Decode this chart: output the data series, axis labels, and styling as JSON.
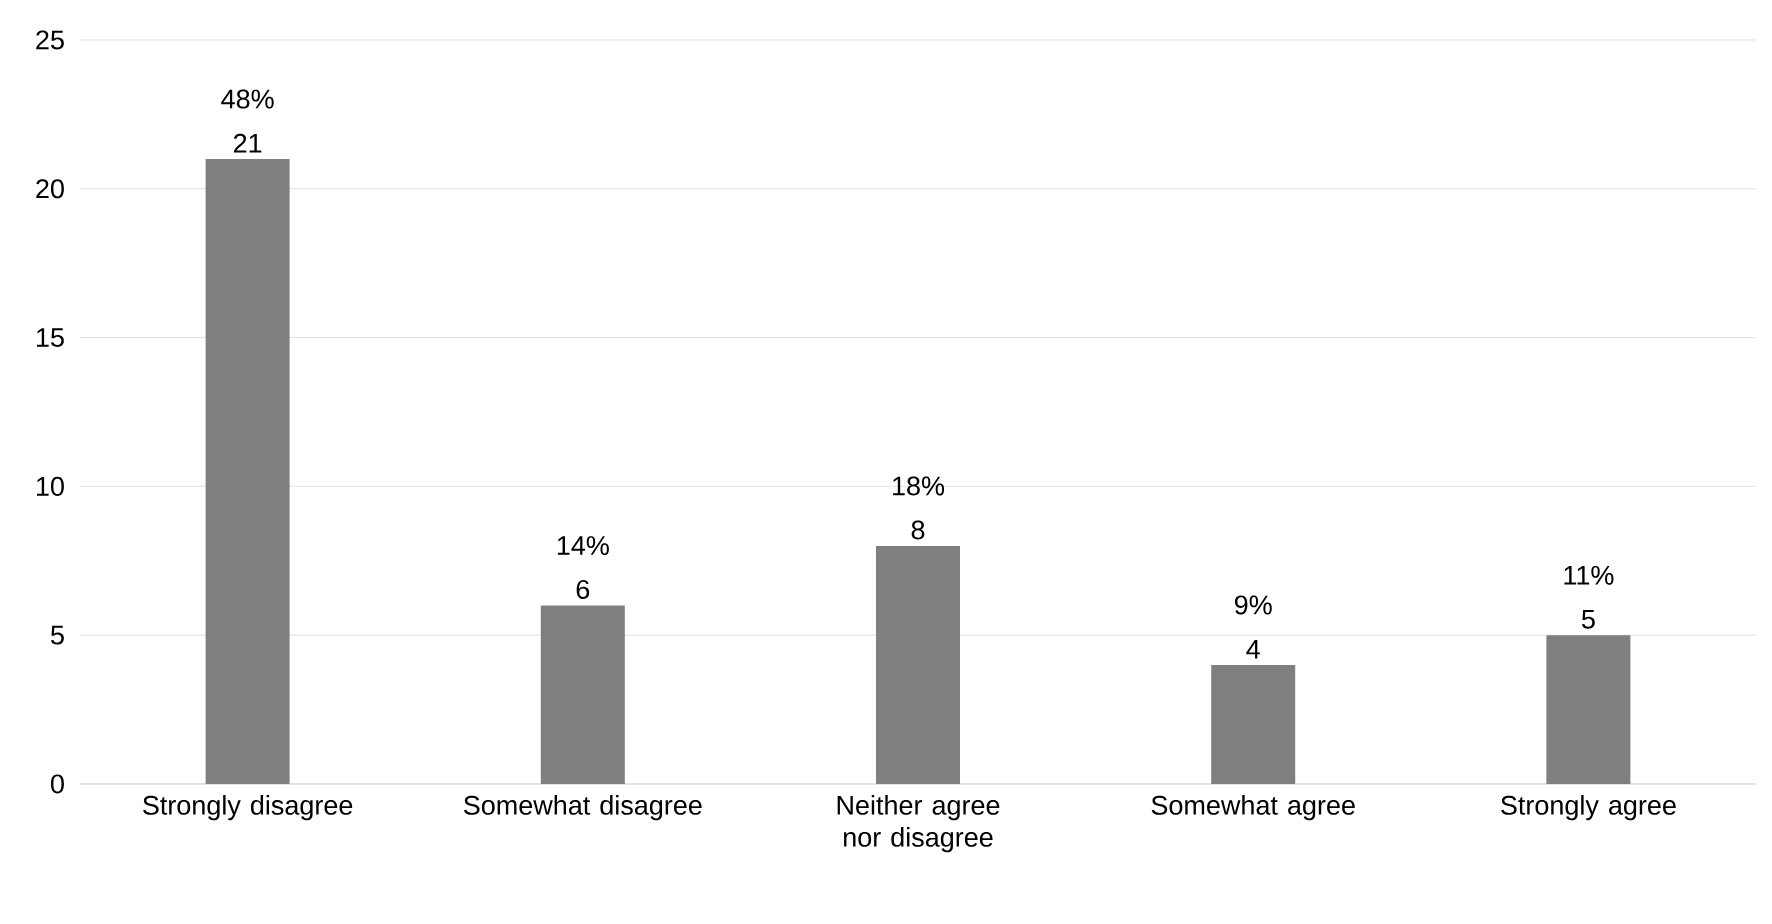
{
  "chart_data": {
    "type": "bar",
    "categories": [
      "Strongly disagree",
      "Somewhat disagree",
      "Neither agree nor disagree",
      "Somewhat agree",
      "Strongly agree"
    ],
    "values": [
      21,
      6,
      8,
      4,
      5
    ],
    "data_labels": true,
    "annotations": [
      {
        "text": "48%",
        "x": "Strongly disagree",
        "y": 21
      },
      {
        "text": "14%",
        "x": "Somewhat disagree",
        "y": 6
      },
      {
        "text": "18%",
        "x": "Neither agree nor disagree",
        "y": 8
      },
      {
        "text": "9%",
        "x": "Somewhat agree",
        "y": 4
      },
      {
        "text": "11%",
        "x": "Strongly agree",
        "y": 5
      }
    ],
    "color": "#7f7f7f",
    "ylim": [
      0,
      25
    ],
    "yticks": [
      0,
      5,
      10,
      15,
      20,
      25
    ],
    "grid": "y"
  }
}
